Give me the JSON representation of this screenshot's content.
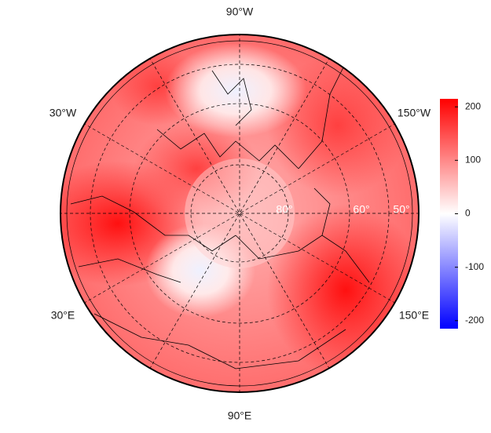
{
  "map": {
    "longitude_labels": [
      "90°W",
      "30°W",
      "150°W",
      "30°E",
      "150°E",
      "90°E"
    ],
    "latitude_labels": [
      "80°",
      "60°",
      "50°"
    ],
    "colorbar": {
      "lim": [
        -215,
        215
      ],
      "ticks": [
        200,
        100,
        0,
        -100,
        -200
      ],
      "colors": [
        "#0000ff",
        "#ffffff",
        "#ff0000"
      ]
    }
  }
}
